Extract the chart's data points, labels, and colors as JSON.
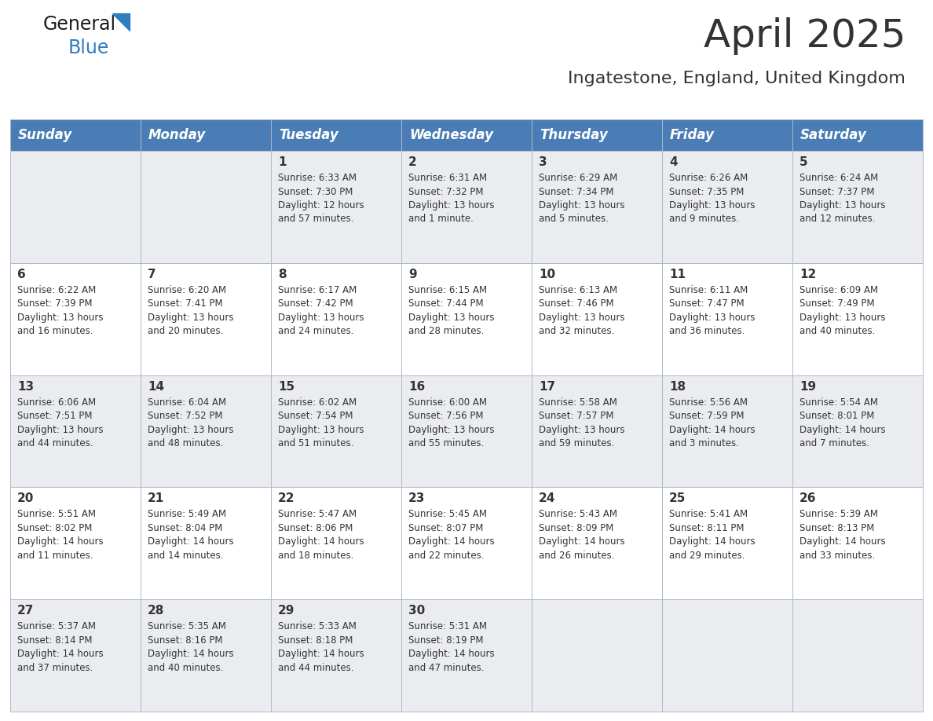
{
  "title": "April 2025",
  "subtitle": "Ingatestone, England, United Kingdom",
  "header_bg_color": "#4A7DB5",
  "header_text_color": "#FFFFFF",
  "cell_bg_color_odd": "#EAECF0",
  "cell_bg_color_even": "#FFFFFF",
  "text_color": "#333333",
  "grid_color": "#B0B8C8",
  "days_of_week": [
    "Sunday",
    "Monday",
    "Tuesday",
    "Wednesday",
    "Thursday",
    "Friday",
    "Saturday"
  ],
  "weeks": [
    [
      {
        "day": "",
        "info": ""
      },
      {
        "day": "",
        "info": ""
      },
      {
        "day": "1",
        "info": "Sunrise: 6:33 AM\nSunset: 7:30 PM\nDaylight: 12 hours\nand 57 minutes."
      },
      {
        "day": "2",
        "info": "Sunrise: 6:31 AM\nSunset: 7:32 PM\nDaylight: 13 hours\nand 1 minute."
      },
      {
        "day": "3",
        "info": "Sunrise: 6:29 AM\nSunset: 7:34 PM\nDaylight: 13 hours\nand 5 minutes."
      },
      {
        "day": "4",
        "info": "Sunrise: 6:26 AM\nSunset: 7:35 PM\nDaylight: 13 hours\nand 9 minutes."
      },
      {
        "day": "5",
        "info": "Sunrise: 6:24 AM\nSunset: 7:37 PM\nDaylight: 13 hours\nand 12 minutes."
      }
    ],
    [
      {
        "day": "6",
        "info": "Sunrise: 6:22 AM\nSunset: 7:39 PM\nDaylight: 13 hours\nand 16 minutes."
      },
      {
        "day": "7",
        "info": "Sunrise: 6:20 AM\nSunset: 7:41 PM\nDaylight: 13 hours\nand 20 minutes."
      },
      {
        "day": "8",
        "info": "Sunrise: 6:17 AM\nSunset: 7:42 PM\nDaylight: 13 hours\nand 24 minutes."
      },
      {
        "day": "9",
        "info": "Sunrise: 6:15 AM\nSunset: 7:44 PM\nDaylight: 13 hours\nand 28 minutes."
      },
      {
        "day": "10",
        "info": "Sunrise: 6:13 AM\nSunset: 7:46 PM\nDaylight: 13 hours\nand 32 minutes."
      },
      {
        "day": "11",
        "info": "Sunrise: 6:11 AM\nSunset: 7:47 PM\nDaylight: 13 hours\nand 36 minutes."
      },
      {
        "day": "12",
        "info": "Sunrise: 6:09 AM\nSunset: 7:49 PM\nDaylight: 13 hours\nand 40 minutes."
      }
    ],
    [
      {
        "day": "13",
        "info": "Sunrise: 6:06 AM\nSunset: 7:51 PM\nDaylight: 13 hours\nand 44 minutes."
      },
      {
        "day": "14",
        "info": "Sunrise: 6:04 AM\nSunset: 7:52 PM\nDaylight: 13 hours\nand 48 minutes."
      },
      {
        "day": "15",
        "info": "Sunrise: 6:02 AM\nSunset: 7:54 PM\nDaylight: 13 hours\nand 51 minutes."
      },
      {
        "day": "16",
        "info": "Sunrise: 6:00 AM\nSunset: 7:56 PM\nDaylight: 13 hours\nand 55 minutes."
      },
      {
        "day": "17",
        "info": "Sunrise: 5:58 AM\nSunset: 7:57 PM\nDaylight: 13 hours\nand 59 minutes."
      },
      {
        "day": "18",
        "info": "Sunrise: 5:56 AM\nSunset: 7:59 PM\nDaylight: 14 hours\nand 3 minutes."
      },
      {
        "day": "19",
        "info": "Sunrise: 5:54 AM\nSunset: 8:01 PM\nDaylight: 14 hours\nand 7 minutes."
      }
    ],
    [
      {
        "day": "20",
        "info": "Sunrise: 5:51 AM\nSunset: 8:02 PM\nDaylight: 14 hours\nand 11 minutes."
      },
      {
        "day": "21",
        "info": "Sunrise: 5:49 AM\nSunset: 8:04 PM\nDaylight: 14 hours\nand 14 minutes."
      },
      {
        "day": "22",
        "info": "Sunrise: 5:47 AM\nSunset: 8:06 PM\nDaylight: 14 hours\nand 18 minutes."
      },
      {
        "day": "23",
        "info": "Sunrise: 5:45 AM\nSunset: 8:07 PM\nDaylight: 14 hours\nand 22 minutes."
      },
      {
        "day": "24",
        "info": "Sunrise: 5:43 AM\nSunset: 8:09 PM\nDaylight: 14 hours\nand 26 minutes."
      },
      {
        "day": "25",
        "info": "Sunrise: 5:41 AM\nSunset: 8:11 PM\nDaylight: 14 hours\nand 29 minutes."
      },
      {
        "day": "26",
        "info": "Sunrise: 5:39 AM\nSunset: 8:13 PM\nDaylight: 14 hours\nand 33 minutes."
      }
    ],
    [
      {
        "day": "27",
        "info": "Sunrise: 5:37 AM\nSunset: 8:14 PM\nDaylight: 14 hours\nand 37 minutes."
      },
      {
        "day": "28",
        "info": "Sunrise: 5:35 AM\nSunset: 8:16 PM\nDaylight: 14 hours\nand 40 minutes."
      },
      {
        "day": "29",
        "info": "Sunrise: 5:33 AM\nSunset: 8:18 PM\nDaylight: 14 hours\nand 44 minutes."
      },
      {
        "day": "30",
        "info": "Sunrise: 5:31 AM\nSunset: 8:19 PM\nDaylight: 14 hours\nand 47 minutes."
      },
      {
        "day": "",
        "info": ""
      },
      {
        "day": "",
        "info": ""
      },
      {
        "day": "",
        "info": ""
      }
    ]
  ],
  "logo_color_general": "#1a1a1a",
  "logo_color_blue": "#2E7EC2",
  "logo_triangle_color": "#2E7EC2",
  "title_fontsize": 36,
  "subtitle_fontsize": 16,
  "header_fontsize": 12,
  "day_num_fontsize": 11,
  "info_fontsize": 8.5
}
